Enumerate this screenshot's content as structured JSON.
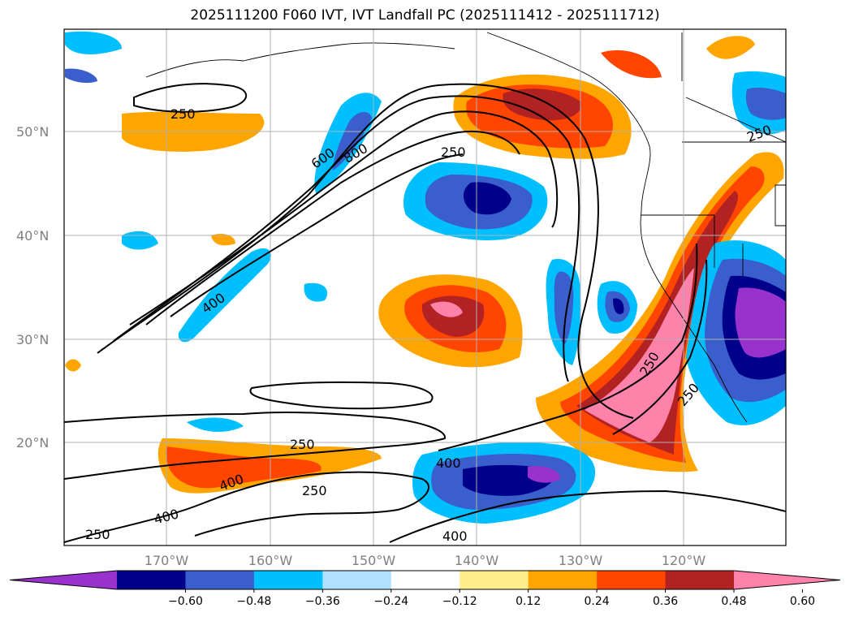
{
  "title": "2025111200 F060 IVT, IVT Landfall PC (2025111412 - 2025111712)",
  "lat_labels": [
    {
      "text": "50°N",
      "lat": 50
    },
    {
      "text": "40°N",
      "lat": 40
    },
    {
      "text": "30°N",
      "lat": 30
    },
    {
      "text": "20°N",
      "lat": 20
    }
  ],
  "lon_labels": [
    {
      "text": "170°W",
      "lon": -170
    },
    {
      "text": "160°W",
      "lon": -160
    },
    {
      "text": "150°W",
      "lon": -150
    },
    {
      "text": "140°W",
      "lon": -140
    },
    {
      "text": "130°W",
      "lon": -130
    },
    {
      "text": "120°W",
      "lon": -120
    }
  ],
  "contour_labels": [
    "250",
    "600",
    "800",
    "250",
    "400",
    "250",
    "250",
    "250",
    "400",
    "250",
    "400",
    "400",
    "250",
    "400",
    "250"
  ],
  "colorbar": {
    "colors": [
      "#9932cc",
      "#00008b",
      "#3a5fcd",
      "#00bfff",
      "#b0e2ff",
      "#ffffff",
      "#ffec8b",
      "#ffa500",
      "#ff4500",
      "#b22222",
      "#ff82ab"
    ],
    "tick_labels": [
      "−0.60",
      "−0.48",
      "−0.36",
      "−0.24",
      "−0.12",
      "0.12",
      "0.24",
      "0.36",
      "0.48",
      "0.60"
    ]
  }
}
